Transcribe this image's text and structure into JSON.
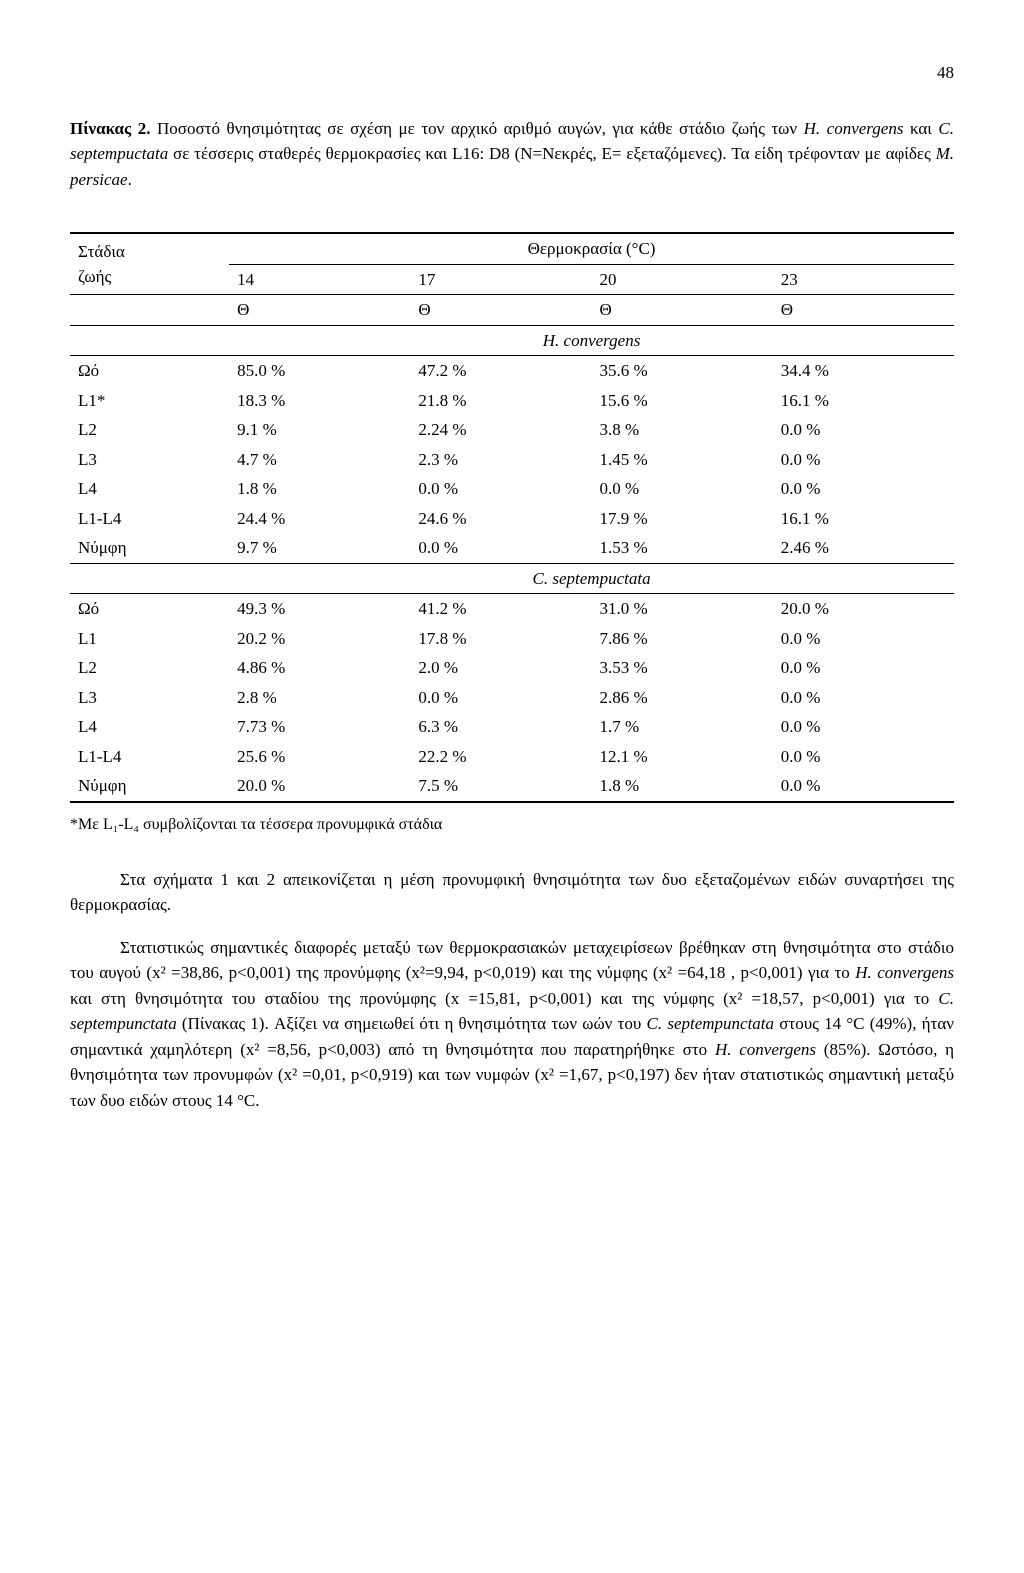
{
  "page_number": "48",
  "caption": {
    "label_bold": "Πίνακας 2.",
    "text_part1": " Ποσοστό θνησιμότητας σε σχέση με τον αρχικό αριθμό αυγών, για κάθε στάδιο ζωής των ",
    "species1": "H. convergens",
    "text_part2": " και ",
    "species2": "C. septempuctata",
    "text_part3": " σε τέσσερις σταθερές θερμοκρασίες και L16: D8 (N=Νεκρές, E= εξεταζόμενες). Τα είδη τρέφονταν με αφίδες ",
    "species3": "M. persicae",
    "text_end": "."
  },
  "table": {
    "header_stage_line1": "Στάδια",
    "header_stage_line2": "ζωής",
    "header_temp": "Θερμοκρασία (°C)",
    "temps": [
      "14",
      "17",
      "20",
      "23"
    ],
    "theta": [
      "Θ",
      "Θ",
      "Θ",
      "Θ"
    ],
    "section1_title": "H. convergens",
    "section1_rows": [
      {
        "stage": "Ωό",
        "v": [
          "85.0 %",
          "47.2 %",
          "35.6 %",
          "34.4 %"
        ]
      },
      {
        "stage": "L1*",
        "v": [
          "18.3 %",
          "21.8 %",
          "15.6 %",
          "16.1 %"
        ]
      },
      {
        "stage": "L2",
        "v": [
          "9.1 %",
          "2.24 %",
          "3.8 %",
          "0.0 %"
        ]
      },
      {
        "stage": "L3",
        "v": [
          "4.7 %",
          "2.3 %",
          "1.45 %",
          "0.0 %"
        ]
      },
      {
        "stage": "L4",
        "v": [
          "1.8 %",
          "0.0 %",
          "0.0 %",
          "0.0 %"
        ]
      },
      {
        "stage": "L1-L4",
        "v": [
          "24.4 %",
          "24.6 %",
          "17.9 %",
          "16.1 %"
        ]
      },
      {
        "stage": "Νύμφη",
        "v": [
          "9.7 %",
          "0.0 %",
          "1.53 %",
          "2.46 %"
        ]
      }
    ],
    "section2_title": "C. septempuctata",
    "section2_rows": [
      {
        "stage": "Ωό",
        "v": [
          "49.3 %",
          "41.2 %",
          "31.0 %",
          "20.0 %"
        ]
      },
      {
        "stage": "L1",
        "v": [
          "20.2 %",
          "17.8 %",
          "7.86 %",
          "0.0 %"
        ]
      },
      {
        "stage": "L2",
        "v": [
          "4.86 %",
          "2.0 %",
          "3.53 %",
          "0.0 %"
        ]
      },
      {
        "stage": "L3",
        "v": [
          "2.8 %",
          "0.0 %",
          "2.86 %",
          "0.0 %"
        ]
      },
      {
        "stage": "L4",
        "v": [
          "7.73 %",
          "6.3 %",
          "1.7 %",
          "0.0 %"
        ]
      },
      {
        "stage": "L1-L4",
        "v": [
          "25.6 %",
          "22.2 %",
          "12.1 %",
          "0.0 %"
        ]
      },
      {
        "stage": "Νύμφη",
        "v": [
          "20.0 %",
          "7.5 %",
          "1.8 %",
          "0.0 %"
        ]
      }
    ]
  },
  "footnote": "*Με L₁-L₄ συμβολίζονται τα τέσσερα προνυμφικά στάδια",
  "body": {
    "p1": "Στα σχήματα 1 και 2 απεικονίζεται η μέση προνυμφική θνησιμότητα των δυο εξεταζομένων ειδών συναρτήσει της θερμοκρασίας.",
    "p2_part1": "Στατιστικώς σημαντικές διαφορές μεταξύ των θερμοκρασιακών μεταχειρίσεων βρέθηκαν στη θνησιμότητα στο στάδιο του αυγού (x² =38,86, p<0,001) της προνύμφης (x²=9,94, p<0,019) και της νύμφης (x² =64,18 , p<0,001) για το ",
    "p2_species1": "H. convergens",
    "p2_part2": " και στη θνησιμότητα του σταδίου της προνύμφης (x =15,81, p<0,001) και της νύμφης (x² =18,57, p<0,001) για το ",
    "p2_species2": "C. septempunctata",
    "p2_part3": " (Πίνακας 1). Αξίζει να σημειωθεί ότι η θνησιμότητα των ωών του ",
    "p2_species3": "C. septempunctata",
    "p2_part4": " στους 14 °C (49%), ήταν σημαντικά χαμηλότερη (x² =8,56, p<0,003) από τη θνησιμότητα που παρατηρήθηκε στο ",
    "p2_species4": "H. convergens",
    "p2_part5": " (85%). Ωστόσο, η θνησιμότητα των προνυμφών (x² =0,01, p<0,919) και των νυμφών (x² =1,67, p<0,197) δεν ήταν στατιστικώς σημαντική μεταξύ των δυο ειδών στους 14 °C."
  }
}
